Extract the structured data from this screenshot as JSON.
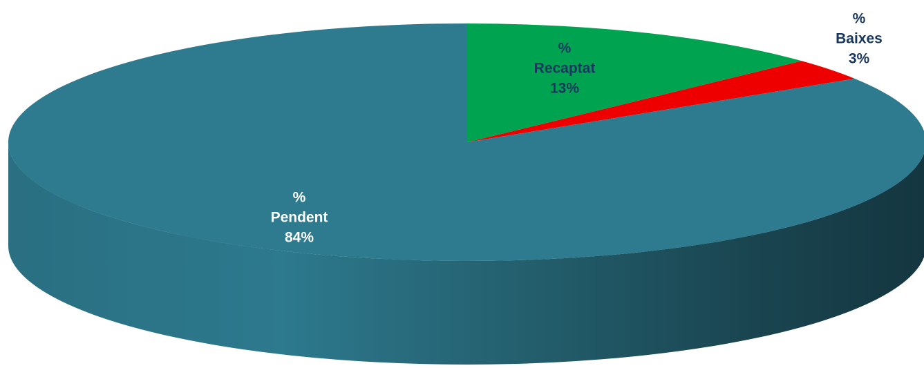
{
  "chart_data": {
    "type": "pie",
    "style": "3d",
    "title": "",
    "series": [
      {
        "name": "",
        "slices": [
          {
            "category": "% Recaptat",
            "prefix": "%",
            "label": "Recaptat",
            "value": 13,
            "display": "13%",
            "color": "#00a450",
            "label_color": "#17375e"
          },
          {
            "category": "% Baixes",
            "prefix": "%",
            "label": "Baixes",
            "value": 3,
            "display": "3%",
            "color": "#ee0000",
            "label_color": "#17375e"
          },
          {
            "category": "% Pendent",
            "prefix": "%",
            "label": "Pendent",
            "value": 84,
            "display": "84%",
            "color": "#2e7a8f",
            "label_color": "#ffffff"
          }
        ]
      }
    ],
    "legend": "none",
    "grid": false
  }
}
